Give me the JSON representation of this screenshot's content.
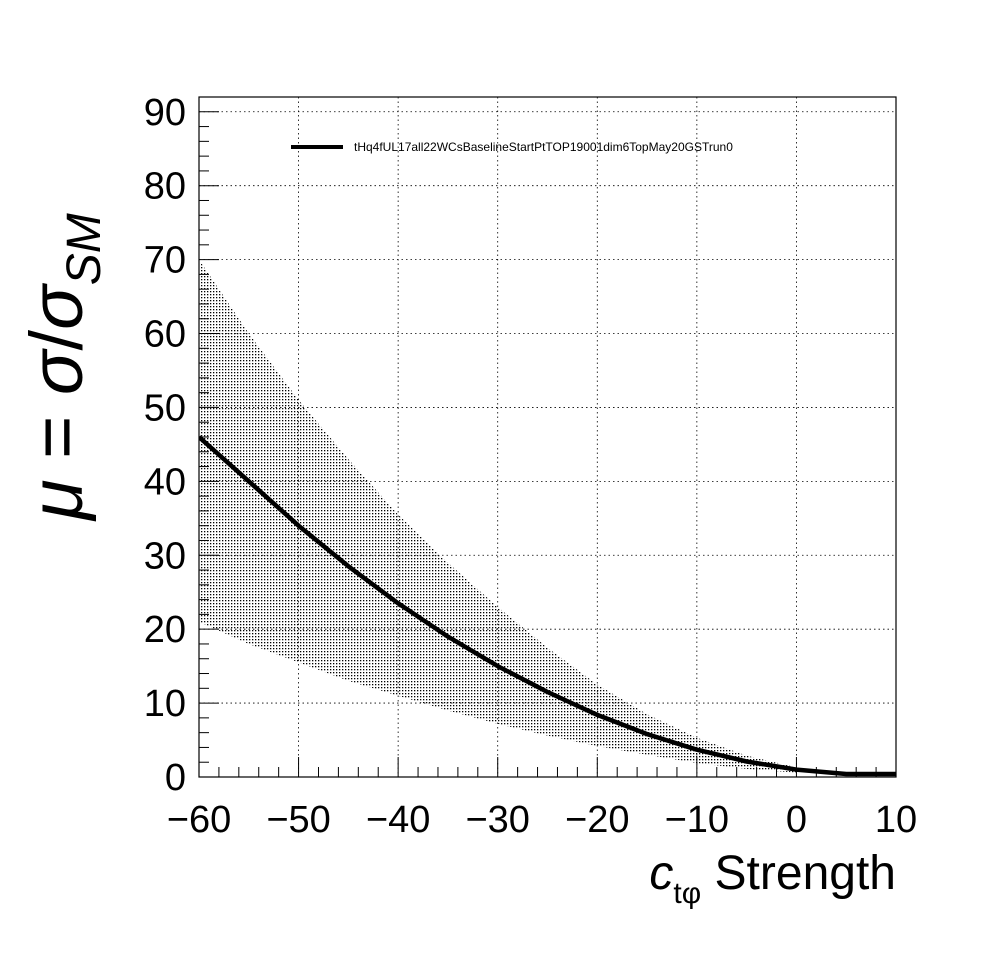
{
  "chart_data": {
    "type": "line",
    "xlabel": {
      "main": "c",
      "sub": "tφ",
      "rest": " Strength"
    },
    "ylabel": {
      "mu": "μ",
      "eq": " = ",
      "sigma": "σ",
      "slash": "/",
      "sigma2": "σ",
      "sub": "SM"
    },
    "xlim": [
      -60,
      10
    ],
    "ylim": [
      0,
      92
    ],
    "xticks": [
      -60,
      -50,
      -40,
      -30,
      -20,
      -10,
      0,
      10
    ],
    "xtick_labels": [
      "−60",
      "−50",
      "−40",
      "−30",
      "−20",
      "−10",
      "0",
      "10"
    ],
    "yticks": [
      0,
      10,
      20,
      30,
      40,
      50,
      60,
      70,
      80,
      90
    ],
    "ytick_labels": [
      "0",
      "10",
      "20",
      "30",
      "40",
      "50",
      "60",
      "70",
      "80",
      "90"
    ],
    "grid": true,
    "legend_placement": "top-left",
    "series": [
      {
        "name": "tHq4fUL17all22WCsBaselineStartPtTOP19001dim6TopMay20GSTrun0",
        "color": "#000000",
        "x": [
          -60,
          -55,
          -50,
          -45,
          -40,
          -35,
          -30,
          -25,
          -20,
          -15,
          -10,
          -5,
          0,
          5,
          10
        ],
        "y": [
          46,
          40,
          34,
          28.5,
          23.5,
          19,
          15,
          11.5,
          8.4,
          5.8,
          3.7,
          2.1,
          1.0,
          0.4,
          0.4
        ]
      }
    ],
    "band": {
      "x": [
        -60,
        -55,
        -50,
        -45,
        -40,
        -35,
        -30,
        -25,
        -20,
        -15,
        -10,
        -5,
        0
      ],
      "upper": [
        70,
        60,
        51,
        43,
        35.5,
        29,
        23,
        17.5,
        12.5,
        8.5,
        5.3,
        2.9,
        1.3
      ],
      "lower": [
        21,
        18,
        15.5,
        13,
        11,
        9,
        7.2,
        5.6,
        4.2,
        3.0,
        1.9,
        1.1,
        0.6
      ]
    }
  }
}
